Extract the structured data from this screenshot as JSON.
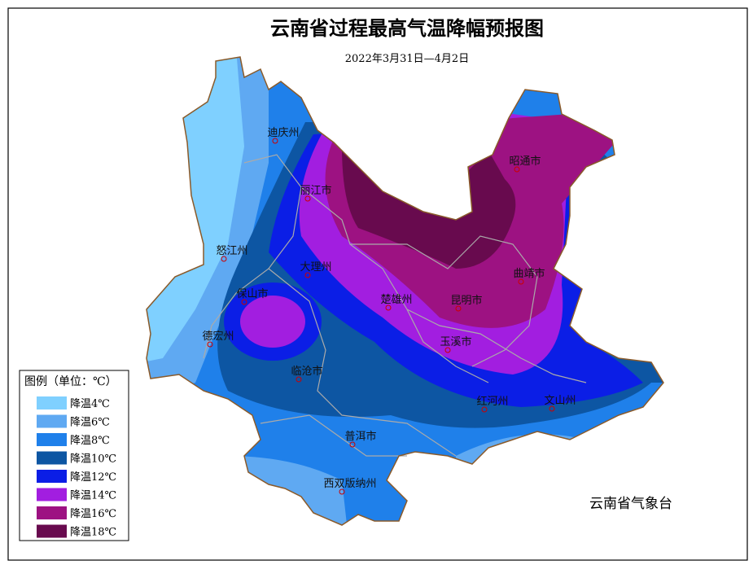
{
  "title": "云南省过程最高气温降幅预报图",
  "subtitle": "2022年3月31日—4月2日",
  "legend": {
    "title": "图例（单位：℃）",
    "items": [
      {
        "label": "降温4℃",
        "color": "#7fd0ff"
      },
      {
        "label": "降温6℃",
        "color": "#5fa9f2"
      },
      {
        "label": "降温8℃",
        "color": "#1f80ea"
      },
      {
        "label": "降温10℃",
        "color": "#0d56a3"
      },
      {
        "label": "降温12℃",
        "color": "#0b1ee6"
      },
      {
        "label": "降温14℃",
        "color": "#a21ee0"
      },
      {
        "label": "降温16℃",
        "color": "#9d1282"
      },
      {
        "label": "降温18℃",
        "color": "#680a4e"
      }
    ]
  },
  "cities": [
    "迪庆州",
    "丽江市",
    "昭通市",
    "怒江州",
    "大理州",
    "曲靖市",
    "保山市",
    "楚雄州",
    "昆明市",
    "德宏州",
    "玉溪市",
    "临沧市",
    "红河州",
    "文山州",
    "普洱市",
    "西双版纳州"
  ],
  "agency": "云南省气象台"
}
